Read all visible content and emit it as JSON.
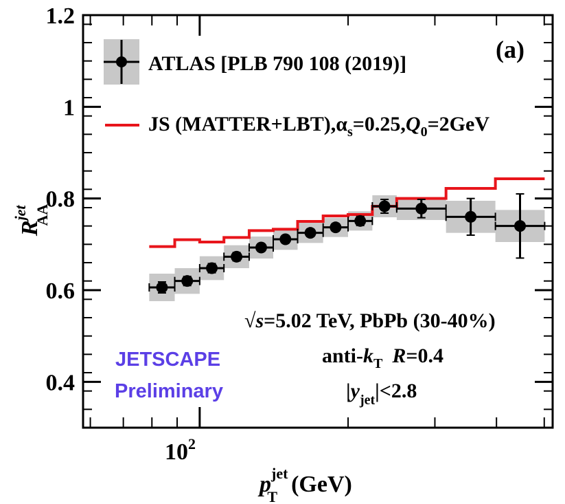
{
  "chart_data": {
    "type": "line",
    "x_scale": "log",
    "xlim": [
      58,
      520
    ],
    "ylim": [
      0.3,
      1.2
    ],
    "y_ticks": [
      0.4,
      0.6,
      0.8,
      1.0,
      1.2
    ],
    "y_tick_labels": [
      "0.4",
      "0.6",
      "0.8",
      "1",
      "1.2"
    ],
    "x_major_tick": 100,
    "x_tick_label": {
      "base": "10",
      "exp": "2"
    },
    "xlabel": {
      "main": "p",
      "sup": "jet",
      "sub": "T",
      "unit": "(GeV)"
    },
    "ylabel": {
      "main": "R",
      "sup": "jet",
      "sub": "AA"
    },
    "panel_label": "(a)",
    "series": [
      {
        "name": "ATLAS [PLB 790 108 (2019)]",
        "kind": "points",
        "color": "#000000",
        "syst_color": "#c8c8c8",
        "bins": [
          {
            "lo": 79,
            "hi": 89,
            "y": 0.606,
            "stat": 0.012,
            "syst": 0.03
          },
          {
            "lo": 89,
            "hi": 100,
            "y": 0.62,
            "stat": 0.01,
            "syst": 0.028
          },
          {
            "lo": 100,
            "hi": 112,
            "y": 0.648,
            "stat": 0.01,
            "syst": 0.026
          },
          {
            "lo": 112,
            "hi": 126,
            "y": 0.673,
            "stat": 0.009,
            "syst": 0.025
          },
          {
            "lo": 126,
            "hi": 141,
            "y": 0.693,
            "stat": 0.008,
            "syst": 0.024
          },
          {
            "lo": 141,
            "hi": 158,
            "y": 0.711,
            "stat": 0.008,
            "syst": 0.023
          },
          {
            "lo": 158,
            "hi": 178,
            "y": 0.725,
            "stat": 0.008,
            "syst": 0.022
          },
          {
            "lo": 178,
            "hi": 200,
            "y": 0.737,
            "stat": 0.008,
            "syst": 0.021
          },
          {
            "lo": 200,
            "hi": 224,
            "y": 0.751,
            "stat": 0.01,
            "syst": 0.021
          },
          {
            "lo": 224,
            "hi": 251,
            "y": 0.783,
            "stat": 0.015,
            "syst": 0.024
          },
          {
            "lo": 251,
            "hi": 316,
            "y": 0.778,
            "stat": 0.02,
            "syst": 0.025
          },
          {
            "lo": 316,
            "hi": 398,
            "y": 0.76,
            "stat": 0.04,
            "syst": 0.035
          },
          {
            "lo": 398,
            "hi": 501,
            "y": 0.74,
            "stat": 0.07,
            "syst": 0.035
          }
        ]
      },
      {
        "name": "JS (MATTER+LBT),α_s=0.25,Q_0=2GeV",
        "kind": "step",
        "color": "#e8151b",
        "edges": [
          79,
          89,
          100,
          112,
          126,
          141,
          158,
          178,
          200,
          224,
          251,
          316,
          398,
          501
        ],
        "values": [
          0.695,
          0.71,
          0.705,
          0.715,
          0.73,
          0.733,
          0.75,
          0.762,
          0.765,
          0.783,
          0.8,
          0.822,
          0.843
        ]
      }
    ],
    "legend": {
      "atlas_label": "ATLAS [PLB 790 108 (2019)]",
      "js_label": "JS (MATTER+LBT),",
      "js_alpha": "α",
      "js_alpha_sub": "s",
      "js_alpha_val": "=0.25,",
      "js_q": "Q",
      "js_q_sub": "0",
      "js_q_val": "=2GeV"
    },
    "annotations": {
      "energy_sqrt": "√",
      "energy_s": "s",
      "energy_rest": "=5.02 TeV, PbPb (30-40%)",
      "algo_pre": "anti-",
      "algo_k": "k",
      "algo_k_sub": "T",
      "algo_R": "R",
      "algo_R_val": "=0.4",
      "rap_bar_open": "|",
      "rap_y": "y",
      "rap_y_sub": "jet",
      "rap_rest": "|<2.8"
    },
    "branding": {
      "line1": "JETSCAPE",
      "line2": "Preliminary",
      "color": "#5b3fe6"
    }
  }
}
